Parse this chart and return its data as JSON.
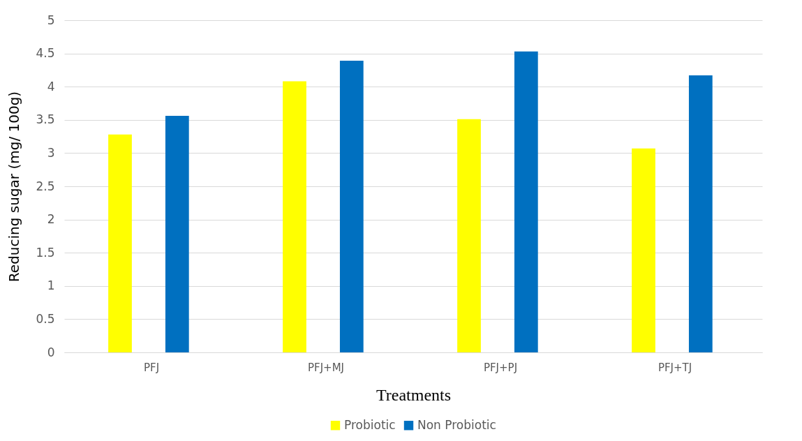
{
  "chart_data": {
    "type": "bar",
    "xlabel": "Treatments",
    "ylabel": "Reducing sugar (mg/ 100g)",
    "categories": [
      "PFJ",
      "PFJ+MJ",
      "PFJ+PJ",
      "PFJ+TJ"
    ],
    "series": [
      {
        "name": "Probiotic",
        "color": "#ffff00",
        "values": [
          3.28,
          4.08,
          3.51,
          3.07
        ]
      },
      {
        "name": "Non Probiotic",
        "color": "#0070c0",
        "values": [
          3.56,
          4.39,
          4.53,
          4.17
        ]
      }
    ],
    "ylim": [
      0,
      5
    ],
    "yticks": [
      0,
      0.5,
      1,
      1.5,
      2,
      2.5,
      3,
      3.5,
      4,
      4.5,
      5
    ],
    "grid": "y",
    "legend": "bottom"
  }
}
